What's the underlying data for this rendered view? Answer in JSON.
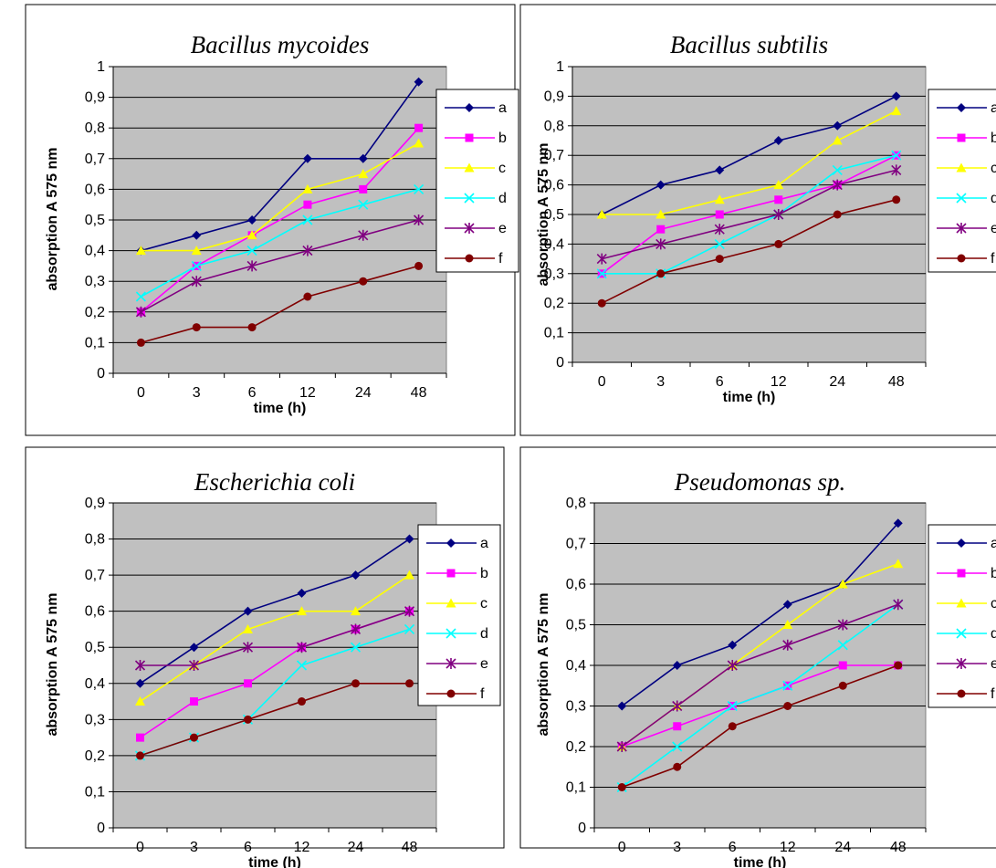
{
  "style": {
    "plot_bg": "#c0c0c0",
    "grid": "#000000",
    "series_colors": {
      "a": "#000080",
      "b": "#ff00ff",
      "c": "#ffff00",
      "d": "#00ffff",
      "e": "#800080",
      "f": "#800000"
    },
    "series_markers": {
      "a": "diamond",
      "b": "square",
      "c": "triangle",
      "d": "x",
      "e": "star",
      "f": "circle"
    }
  },
  "chart_data": [
    {
      "type": "line",
      "title": "Bacillus mycoides",
      "xlabel": "time (h)",
      "ylabel": "absorption A 575 nm",
      "categories": [
        "0",
        "3",
        "6",
        "12",
        "24",
        "48"
      ],
      "ylim": [
        0,
        1
      ],
      "yticks": [
        "0",
        "0,1",
        "0,2",
        "0,3",
        "0,4",
        "0,5",
        "0,6",
        "0,7",
        "0,8",
        "0,9",
        "1"
      ],
      "grid": true,
      "legend": "right",
      "series": [
        {
          "name": "a",
          "values": [
            0.4,
            0.45,
            0.5,
            0.7,
            0.7,
            0.95
          ]
        },
        {
          "name": "b",
          "values": [
            0.2,
            0.35,
            0.45,
            0.55,
            0.6,
            0.8
          ]
        },
        {
          "name": "c",
          "values": [
            0.4,
            0.4,
            0.45,
            0.6,
            0.65,
            0.75
          ]
        },
        {
          "name": "d",
          "values": [
            0.25,
            0.35,
            0.4,
            0.5,
            0.55,
            0.6
          ]
        },
        {
          "name": "e",
          "values": [
            0.2,
            0.3,
            0.35,
            0.4,
            0.45,
            0.5
          ]
        },
        {
          "name": "f",
          "values": [
            0.1,
            0.15,
            0.15,
            0.25,
            0.3,
            0.35
          ]
        }
      ]
    },
    {
      "type": "line",
      "title": "Bacillus subtilis",
      "xlabel": "time (h)",
      "ylabel": "absorption A 575 nm",
      "categories": [
        "0",
        "3",
        "6",
        "12",
        "24",
        "48"
      ],
      "ylim": [
        0,
        1
      ],
      "yticks": [
        "0",
        "0,1",
        "0,2",
        "0,3",
        "0,4",
        "0,5",
        "0,6",
        "0,7",
        "0,8",
        "0,9",
        "1"
      ],
      "grid": true,
      "legend": "right",
      "series": [
        {
          "name": "a",
          "values": [
            0.5,
            0.6,
            0.65,
            0.75,
            0.8,
            0.9
          ]
        },
        {
          "name": "b",
          "values": [
            0.3,
            0.45,
            0.5,
            0.55,
            0.6,
            0.7
          ]
        },
        {
          "name": "c",
          "values": [
            0.5,
            0.5,
            0.55,
            0.6,
            0.75,
            0.85
          ]
        },
        {
          "name": "d",
          "values": [
            0.3,
            0.3,
            0.4,
            0.5,
            0.65,
            0.7
          ]
        },
        {
          "name": "e",
          "values": [
            0.35,
            0.4,
            0.45,
            0.5,
            0.6,
            0.65
          ]
        },
        {
          "name": "f",
          "values": [
            0.2,
            0.3,
            0.35,
            0.4,
            0.5,
            0.55
          ]
        }
      ]
    },
    {
      "type": "line",
      "title": "Escherichia coli",
      "xlabel": "time (h)",
      "ylabel": "absorption A 575 nm",
      "categories": [
        "0",
        "3",
        "6",
        "12",
        "24",
        "48"
      ],
      "ylim": [
        0,
        0.9
      ],
      "yticks": [
        "0",
        "0,1",
        "0,2",
        "0,3",
        "0,4",
        "0,5",
        "0,6",
        "0,7",
        "0,8",
        "0,9"
      ],
      "grid": true,
      "legend": "right",
      "series": [
        {
          "name": "a",
          "values": [
            0.4,
            0.5,
            0.6,
            0.65,
            0.7,
            0.8
          ]
        },
        {
          "name": "b",
          "values": [
            0.25,
            0.35,
            0.4,
            0.5,
            0.55,
            0.6
          ]
        },
        {
          "name": "c",
          "values": [
            0.35,
            0.45,
            0.55,
            0.6,
            0.6,
            0.7
          ]
        },
        {
          "name": "d",
          "values": [
            0.2,
            0.25,
            0.3,
            0.45,
            0.5,
            0.55
          ]
        },
        {
          "name": "e",
          "values": [
            0.45,
            0.45,
            0.5,
            0.5,
            0.55,
            0.6
          ]
        },
        {
          "name": "f",
          "values": [
            0.2,
            0.25,
            0.3,
            0.35,
            0.4,
            0.4
          ]
        }
      ]
    },
    {
      "type": "line",
      "title": "Pseudomonas sp.",
      "xlabel": "time (h)",
      "ylabel": "absorption A 575 nm",
      "categories": [
        "0",
        "3",
        "6",
        "12",
        "24",
        "48"
      ],
      "ylim": [
        0,
        0.8
      ],
      "yticks": [
        "0",
        "0,1",
        "0,2",
        "0,3",
        "0,4",
        "0,5",
        "0,6",
        "0,7",
        "0,8"
      ],
      "grid": true,
      "legend": "right",
      "series": [
        {
          "name": "a",
          "values": [
            0.3,
            0.4,
            0.45,
            0.55,
            0.6,
            0.75
          ]
        },
        {
          "name": "b",
          "values": [
            0.2,
            0.25,
            0.3,
            0.35,
            0.4,
            0.4
          ]
        },
        {
          "name": "c",
          "values": [
            0.2,
            0.3,
            0.4,
            0.5,
            0.6,
            0.65
          ]
        },
        {
          "name": "d",
          "values": [
            0.1,
            0.2,
            0.3,
            0.35,
            0.45,
            0.55
          ]
        },
        {
          "name": "e",
          "values": [
            0.2,
            0.3,
            0.4,
            0.45,
            0.5,
            0.55
          ]
        },
        {
          "name": "f",
          "values": [
            0.1,
            0.15,
            0.25,
            0.3,
            0.35,
            0.4
          ]
        }
      ]
    }
  ]
}
